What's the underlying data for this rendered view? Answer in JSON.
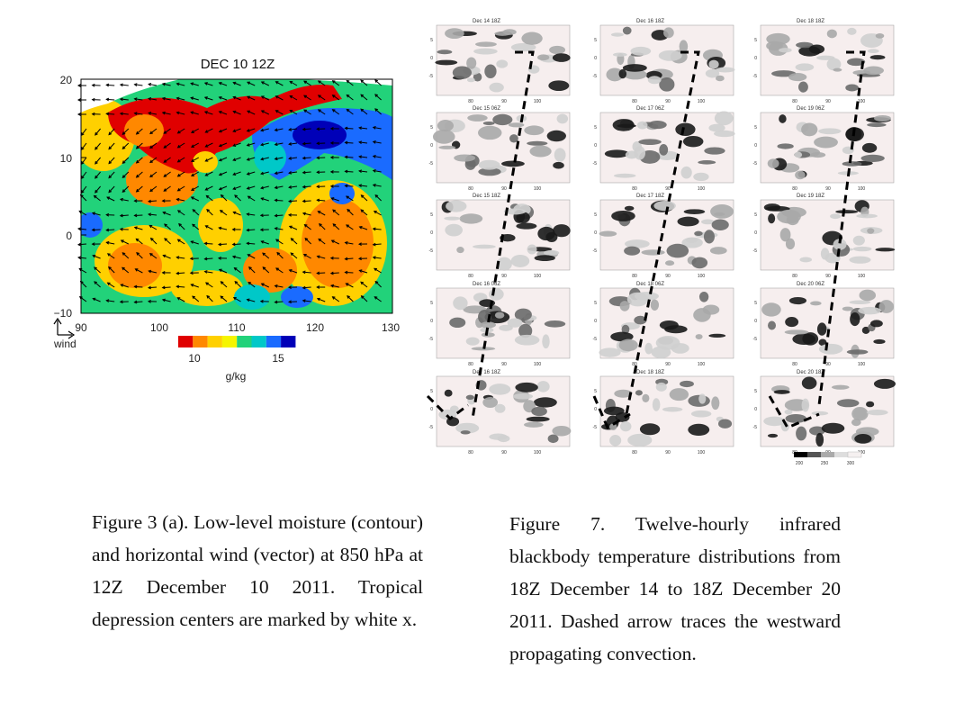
{
  "figure3": {
    "title": "DEC 10 12Z",
    "y_ticks": [
      "20",
      "10",
      "0",
      "−10"
    ],
    "x_ticks": [
      "90",
      "100",
      "110",
      "120",
      "130"
    ],
    "wind_label": "wind",
    "colorbar_ticks": [
      "10",
      "15"
    ],
    "colorbar_unit": "g/kg",
    "colorbar_colors": [
      "#e00000",
      "#ff8800",
      "#ffd000",
      "#f5f500",
      "#22d27a",
      "#00c8c8",
      "#1a6bff",
      "#0000b8"
    ],
    "caption": "Figure 3 (a). Low-level moisture (contour) and horizontal wind (vector) at 850 hPa at 12Z December 10 2011. Tropical depression centers are marked by white x."
  },
  "figure7": {
    "panels": [
      {
        "title": "Dec 14 18Z"
      },
      {
        "title": "Dec 16 18Z"
      },
      {
        "title": "Dec 18 18Z"
      },
      {
        "title": "Dec 15 06Z"
      },
      {
        "title": "Dec 17 06Z"
      },
      {
        "title": "Dec 19 06Z"
      },
      {
        "title": "Dec 15 18Z"
      },
      {
        "title": "Dec 17 18Z"
      },
      {
        "title": "Dec 19 18Z"
      },
      {
        "title": "Dec 16 06Z"
      },
      {
        "title": "Dec 18 06Z"
      },
      {
        "title": "Dec 20 06Z"
      },
      {
        "title": "Dec 16 18Z"
      },
      {
        "title": "Dec 18 18Z"
      },
      {
        "title": "Dec 20 18Z"
      }
    ],
    "y_ticks": [
      "5",
      "0",
      "-5"
    ],
    "x_ticks": [
      "80",
      "90",
      "100"
    ],
    "colorbar_ticks": [
      "200",
      "250",
      "300"
    ],
    "caption": "Figure 7. Twelve-hourly infrared blackbody temperature distributions from 18Z December 14 to 18Z December 20 2011. Dashed arrow traces the westward propagating convection."
  }
}
